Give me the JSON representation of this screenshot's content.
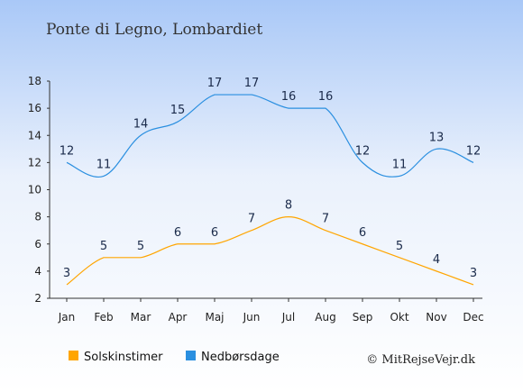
{
  "title": "Ponte di Legno, Lombardiet",
  "credit": "© MitRejseVejr.dk",
  "chart_data": {
    "type": "line",
    "categories": [
      "Jan",
      "Feb",
      "Mar",
      "Apr",
      "Maj",
      "Jun",
      "Jul",
      "Aug",
      "Sep",
      "Okt",
      "Nov",
      "Dec"
    ],
    "ylim": [
      2,
      18
    ],
    "yticks": [
      2,
      4,
      6,
      8,
      10,
      12,
      14,
      16,
      18
    ],
    "grid": false,
    "legend_position": "bottom-left",
    "series": [
      {
        "name": "Solskinstimer",
        "color": "#ffa500",
        "values": [
          3,
          5,
          5,
          6,
          6,
          7,
          8,
          7,
          6,
          5,
          4,
          3
        ]
      },
      {
        "name": "Nedbørsdage",
        "color": "#2a8fe0",
        "values": [
          12,
          11,
          14,
          15,
          17,
          17,
          16,
          16,
          12,
          11,
          13,
          12
        ]
      }
    ]
  }
}
